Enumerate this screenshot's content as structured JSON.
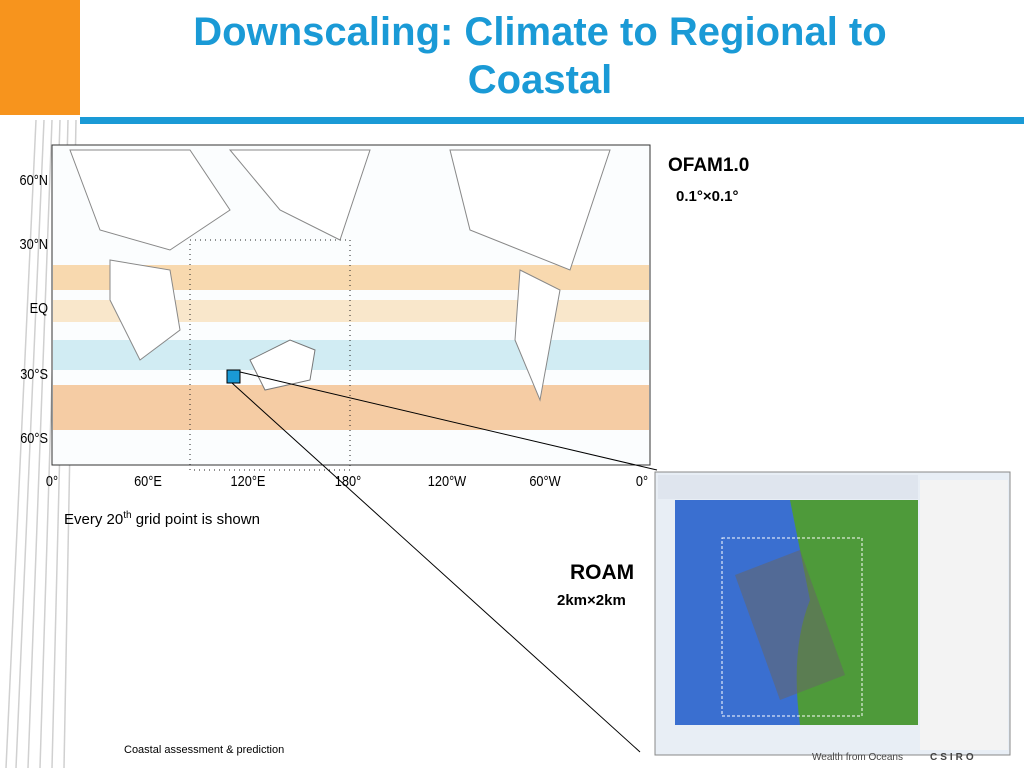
{
  "title": "Downscaling: Climate to Regional to Coastal",
  "map": {
    "lat_labels": [
      "60°N",
      "30°N",
      "EQ",
      "30°S",
      "60°S"
    ],
    "lon_labels": [
      "0°",
      "60°E",
      "120°E",
      "180°",
      "120°W",
      "60°W",
      "0°"
    ]
  },
  "ofam": {
    "name": "OFAM1.0",
    "resolution": "0.1°×0.1°"
  },
  "note": {
    "text": "Every 20",
    "sup": "th",
    "rest": " grid point is shown"
  },
  "roam": {
    "name": "ROAM",
    "resolution": "2km×2km"
  },
  "footer": {
    "text": "Coastal assessment & prediction",
    "slogan": "Wealth from Oceans",
    "logo": "CSIRO"
  }
}
